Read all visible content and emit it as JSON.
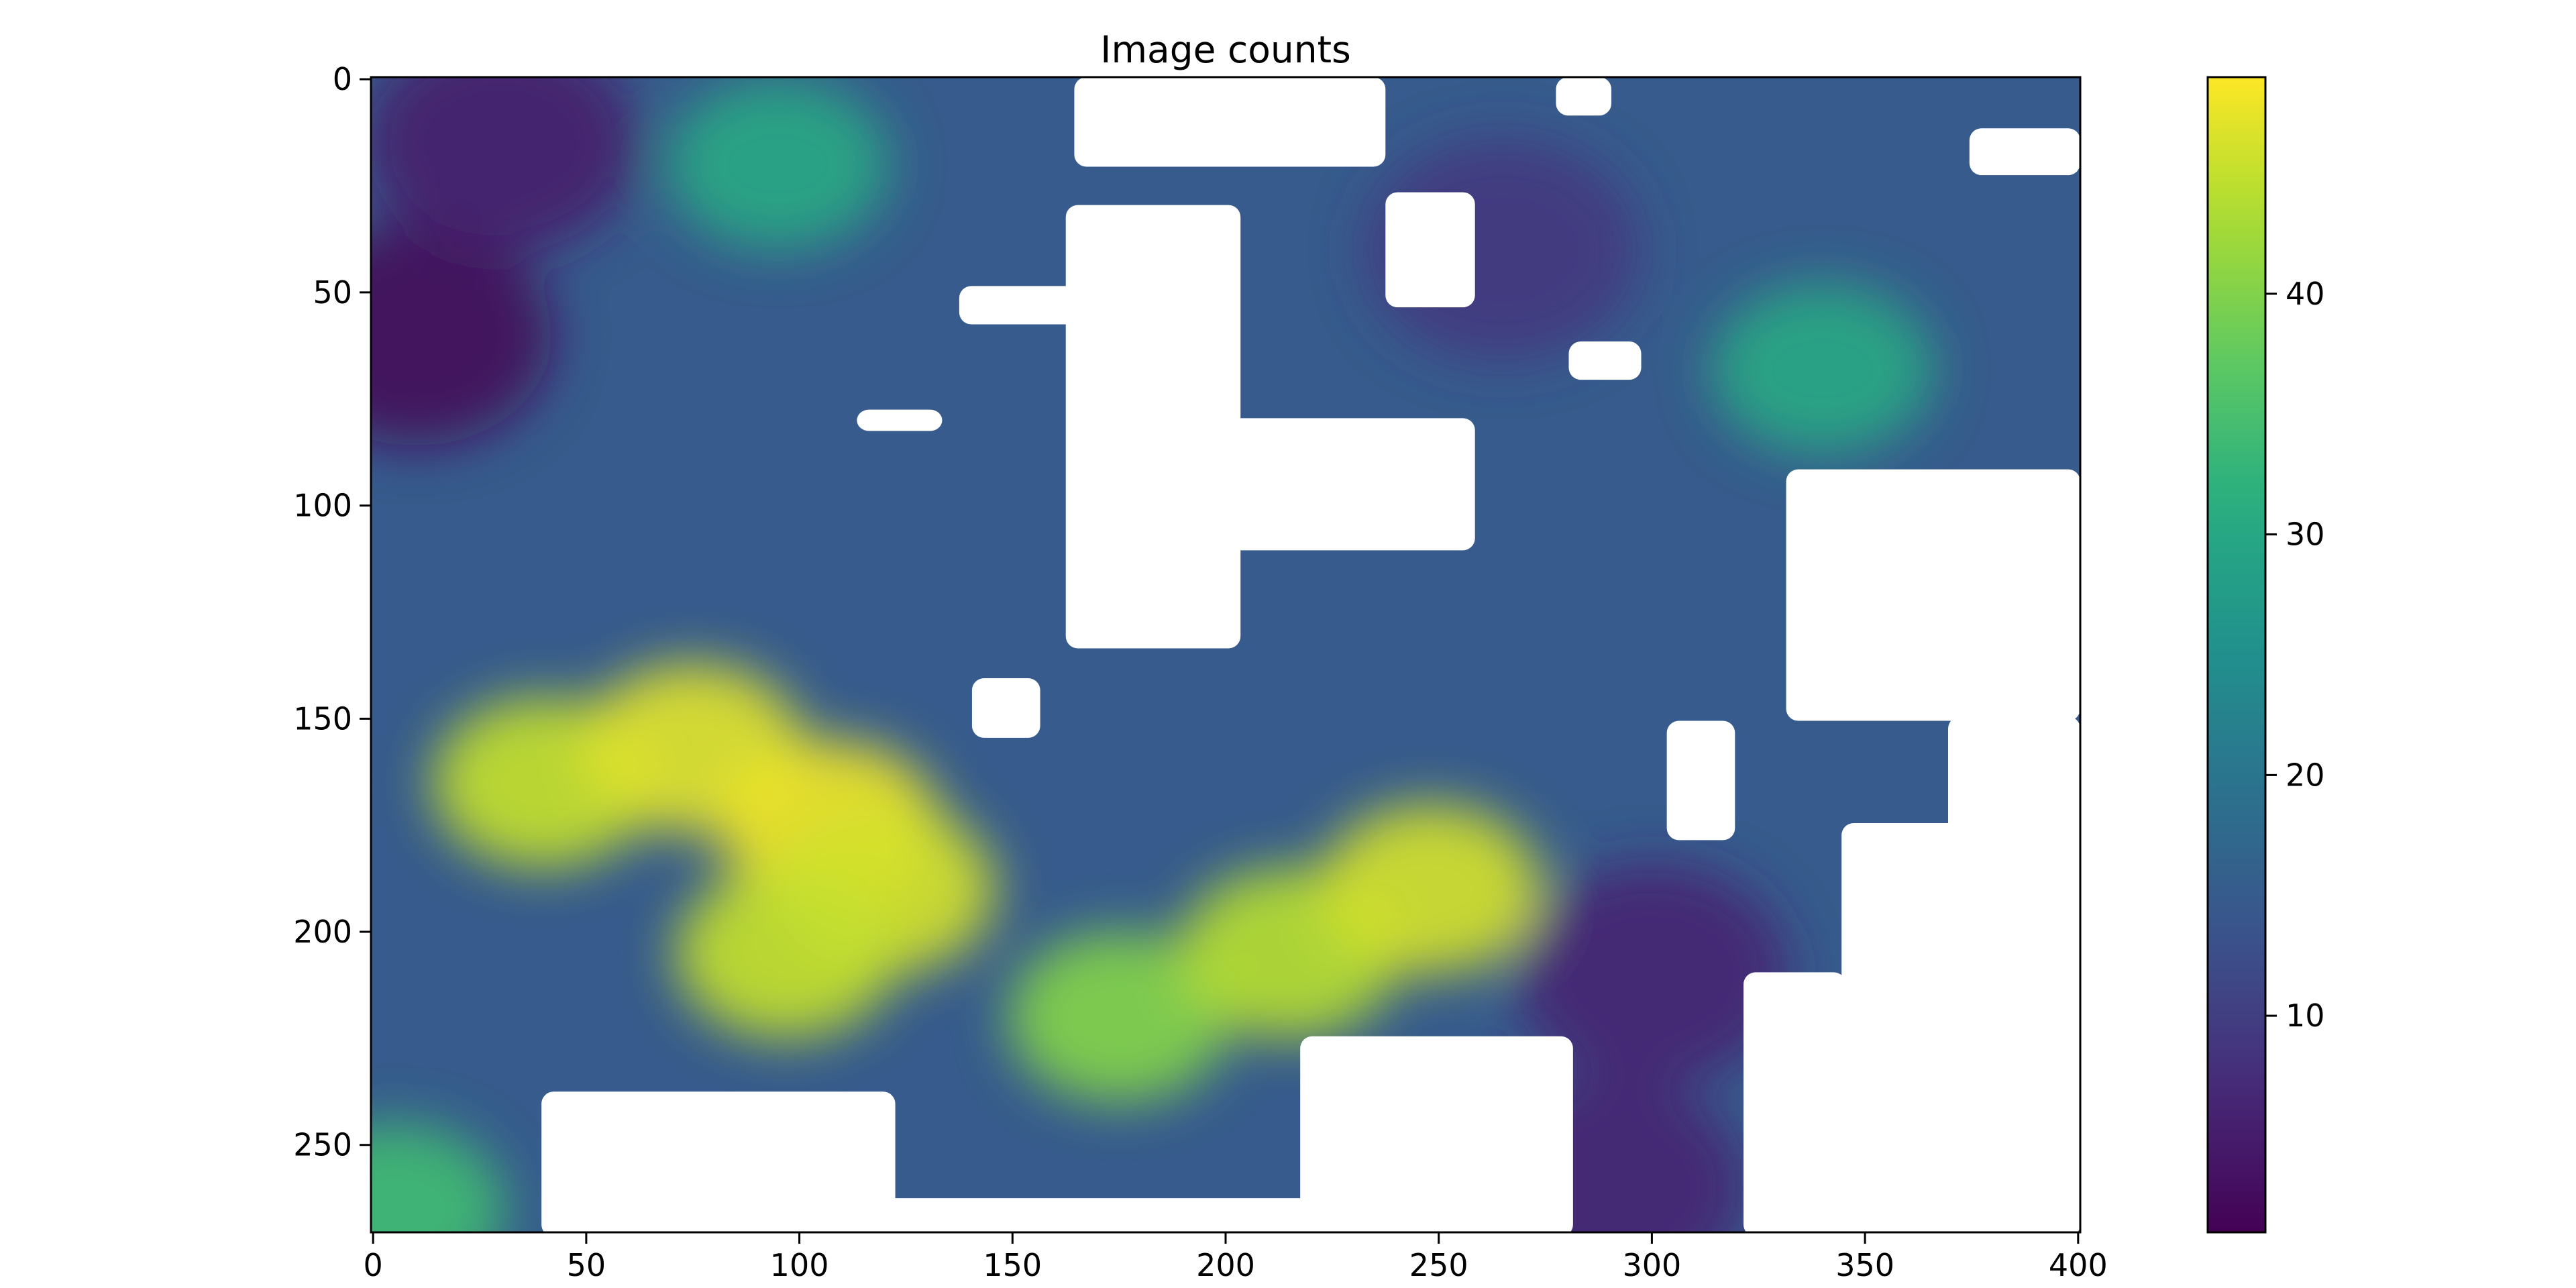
{
  "chart_data": {
    "type": "heatmap",
    "title": "Image counts",
    "xlabel": "",
    "ylabel": "",
    "colormap": "viridis",
    "mask_color": "#ffffff",
    "grid": false,
    "image_shape": [
      271,
      401
    ],
    "xlim": [
      -0.5,
      400.5
    ],
    "ylim": [
      270.5,
      -0.5
    ],
    "x_ticks": [
      0,
      50,
      100,
      150,
      200,
      250,
      300,
      350,
      400
    ],
    "x_tick_labels": [
      "0",
      "50",
      "100",
      "150",
      "200",
      "250",
      "300",
      "350",
      "400"
    ],
    "y_ticks": [
      0,
      50,
      100,
      150,
      200,
      250
    ],
    "y_tick_labels": [
      "0",
      "50",
      "100",
      "150",
      "200",
      "250"
    ],
    "colorbar": {
      "range": [
        1,
        49
      ],
      "ticks": [
        10,
        20,
        30,
        40
      ],
      "tick_labels": [
        "10",
        "20",
        "30",
        "40"
      ]
    },
    "value_hotspots": [
      {
        "x": 40,
        "y": 165,
        "value": 45
      },
      {
        "x": 75,
        "y": 157,
        "value": 47
      },
      {
        "x": 107,
        "y": 175,
        "value": 48
      },
      {
        "x": 120,
        "y": 190,
        "value": 46
      },
      {
        "x": 97,
        "y": 205,
        "value": 45
      },
      {
        "x": 175,
        "y": 220,
        "value": 40
      },
      {
        "x": 215,
        "y": 205,
        "value": 44
      },
      {
        "x": 248,
        "y": 190,
        "value": 46
      },
      {
        "x": 340,
        "y": 68,
        "value": 30
      },
      {
        "x": 95,
        "y": 20,
        "value": 30
      },
      {
        "x": 5,
        "y": 265,
        "value": 34
      }
    ],
    "low_value_regions": [
      {
        "x": 10,
        "y": 60,
        "value": 2
      },
      {
        "x": 30,
        "y": 15,
        "value": 5
      },
      {
        "x": 265,
        "y": 40,
        "value": 9
      },
      {
        "x": 300,
        "y": 210,
        "value": 6
      },
      {
        "x": 290,
        "y": 260,
        "value": 6
      }
    ],
    "missing_regions": [
      {
        "x_range": [
          165,
          237
        ],
        "y_range": [
          0,
          20
        ]
      },
      {
        "x_range": [
          278,
          290
        ],
        "y_range": [
          0,
          8
        ]
      },
      {
        "x_range": [
          375,
          400
        ],
        "y_range": [
          12,
          22
        ]
      },
      {
        "x_range": [
          238,
          258
        ],
        "y_range": [
          27,
          53
        ]
      },
      {
        "x_range": [
          138,
          172
        ],
        "y_range": [
          49,
          57
        ]
      },
      {
        "x_range": [
          114,
          133
        ],
        "y_range": [
          78,
          82
        ]
      },
      {
        "x_range": [
          281,
          297
        ],
        "y_range": [
          62,
          70
        ]
      },
      {
        "x_range": [
          163,
          203
        ],
        "y_range": [
          30,
          133
        ]
      },
      {
        "x_range": [
          193,
          258
        ],
        "y_range": [
          80,
          110
        ]
      },
      {
        "x_range": [
          141,
          156
        ],
        "y_range": [
          141,
          154
        ]
      },
      {
        "x_range": [
          304,
          319
        ],
        "y_range": [
          151,
          178
        ]
      },
      {
        "x_range": [
          332,
          400
        ],
        "y_range": [
          92,
          150
        ]
      },
      {
        "x_range": [
          370,
          400
        ],
        "y_range": [
          150,
          271
        ]
      },
      {
        "x_range": [
          345,
          400
        ],
        "y_range": [
          175,
          271
        ]
      },
      {
        "x_range": [
          322,
          345
        ],
        "y_range": [
          210,
          271
        ]
      },
      {
        "x_range": [
          40,
          122
        ],
        "y_range": [
          238,
          271
        ]
      },
      {
        "x_range": [
          78,
          230
        ],
        "y_range": [
          263,
          271
        ]
      },
      {
        "x_range": [
          218,
          281
        ],
        "y_range": [
          225,
          271
        ]
      }
    ]
  }
}
